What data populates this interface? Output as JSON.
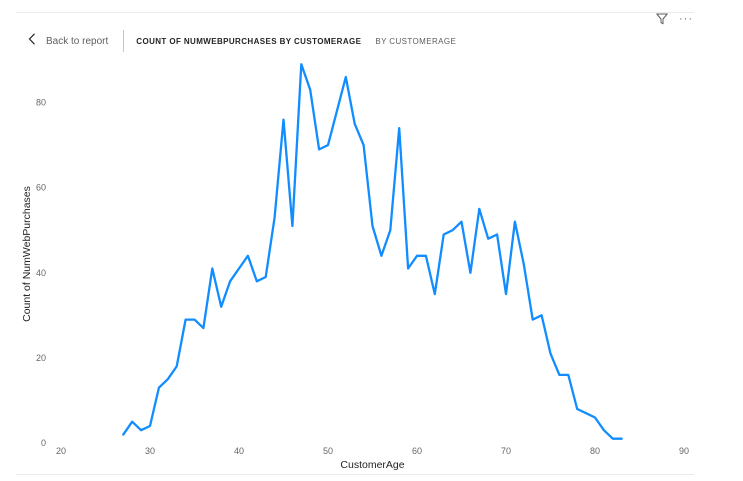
{
  "header": {
    "back_label": "Back to report",
    "title": "COUNT OF NUMWEBPURCHASES BY CUSTOMERAGE",
    "subtitle": "BY CUSTOMERAGE"
  },
  "toolbar": {
    "filter_icon": "filter-icon",
    "more_icon": "more-options-icon",
    "more_glyph": "···"
  },
  "chart_data": {
    "type": "line",
    "xlabel": "CustomerAge",
    "ylabel": "Count of NumWebPurchases",
    "xlim": [
      20,
      90
    ],
    "ylim": [
      0,
      90
    ],
    "x_ticks": [
      "20",
      "30",
      "40",
      "50",
      "60",
      "70",
      "80",
      "90"
    ],
    "y_ticks": [
      "0",
      "20",
      "40",
      "60",
      "80"
    ],
    "grid": false,
    "color": "#118DFF",
    "series": [
      {
        "x": [
          27,
          28,
          29,
          30,
          31,
          32,
          33,
          34,
          35,
          36,
          37,
          38,
          39,
          40,
          41,
          42,
          43,
          44,
          45,
          46,
          47,
          48,
          49,
          50,
          51,
          52,
          53,
          54,
          55,
          56,
          57,
          58,
          59,
          60,
          61,
          62,
          63,
          64,
          65,
          66,
          67,
          68,
          69,
          70,
          71,
          72,
          73,
          74,
          75,
          76,
          77,
          78,
          79,
          80,
          81,
          82,
          83
        ],
        "values": [
          2,
          5,
          3,
          4,
          13,
          15,
          18,
          29,
          29,
          27,
          41,
          32,
          38,
          41,
          44,
          38,
          39,
          53,
          76,
          51,
          89,
          83,
          69,
          70,
          78,
          86,
          75,
          70,
          51,
          44,
          50,
          74,
          41,
          44,
          44,
          35,
          49,
          50,
          52,
          40,
          55,
          48,
          49,
          35,
          52,
          42,
          29,
          30,
          21,
          16,
          16,
          8,
          7,
          6,
          3,
          1,
          1
        ]
      }
    ]
  }
}
